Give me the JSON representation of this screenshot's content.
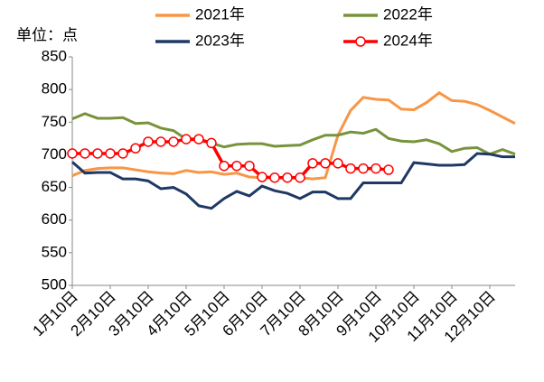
{
  "chart_data": {
    "type": "line",
    "y_label": "单位：点",
    "categories": [
      "1月10日",
      null,
      null,
      "2月10日",
      null,
      null,
      "3月10日",
      null,
      null,
      "4月10日",
      null,
      null,
      "5月10日",
      null,
      null,
      "6月10日",
      null,
      null,
      "7月10日",
      null,
      null,
      "8月10日",
      null,
      null,
      "9月10日",
      null,
      null,
      "10月10日",
      null,
      null,
      "11月10日",
      null,
      null,
      "12月10日",
      null,
      null
    ],
    "ylim": [
      500,
      850
    ],
    "yticks": [
      500,
      550,
      600,
      650,
      700,
      750,
      800,
      850
    ],
    "grid": false,
    "series": [
      {
        "name": "2021年",
        "color": "#f79646",
        "marker": false,
        "values": [
          668,
          676,
          679,
          680,
          680,
          677,
          674,
          672,
          671,
          676,
          673,
          674,
          670,
          672,
          666,
          665,
          665,
          666,
          665,
          663,
          665,
          730,
          768,
          788,
          785,
          784,
          770,
          769,
          780,
          795,
          783,
          782,
          777,
          768,
          758,
          748
        ]
      },
      {
        "name": "2022年",
        "color": "#77933c",
        "marker": false,
        "values": [
          755,
          763,
          756,
          756,
          757,
          748,
          749,
          741,
          737,
          724,
          722,
          718,
          712,
          716,
          717,
          717,
          713,
          714,
          715,
          723,
          730,
          730,
          735,
          733,
          739,
          725,
          721,
          720,
          723,
          717,
          705,
          710,
          711,
          701,
          708,
          701
        ]
      },
      {
        "name": "2023年",
        "color": "#1f3864",
        "marker": false,
        "values": [
          689,
          672,
          673,
          673,
          663,
          663,
          660,
          648,
          650,
          640,
          622,
          618,
          633,
          644,
          637,
          652,
          645,
          641,
          633,
          643,
          643,
          633,
          633,
          657,
          657,
          657,
          657,
          688,
          686,
          684,
          684,
          685,
          702,
          701,
          697,
          697
        ]
      },
      {
        "name": "2024年",
        "color": "#ff0000",
        "marker": true,
        "values": [
          702,
          702,
          702,
          702,
          702,
          710,
          720,
          720,
          720,
          724,
          724,
          718,
          683,
          683,
          683,
          666,
          665,
          665,
          665,
          687,
          687,
          687,
          679,
          679,
          679,
          677,
          null,
          null,
          null,
          null,
          null,
          null,
          null,
          null,
          null,
          null
        ]
      }
    ]
  }
}
